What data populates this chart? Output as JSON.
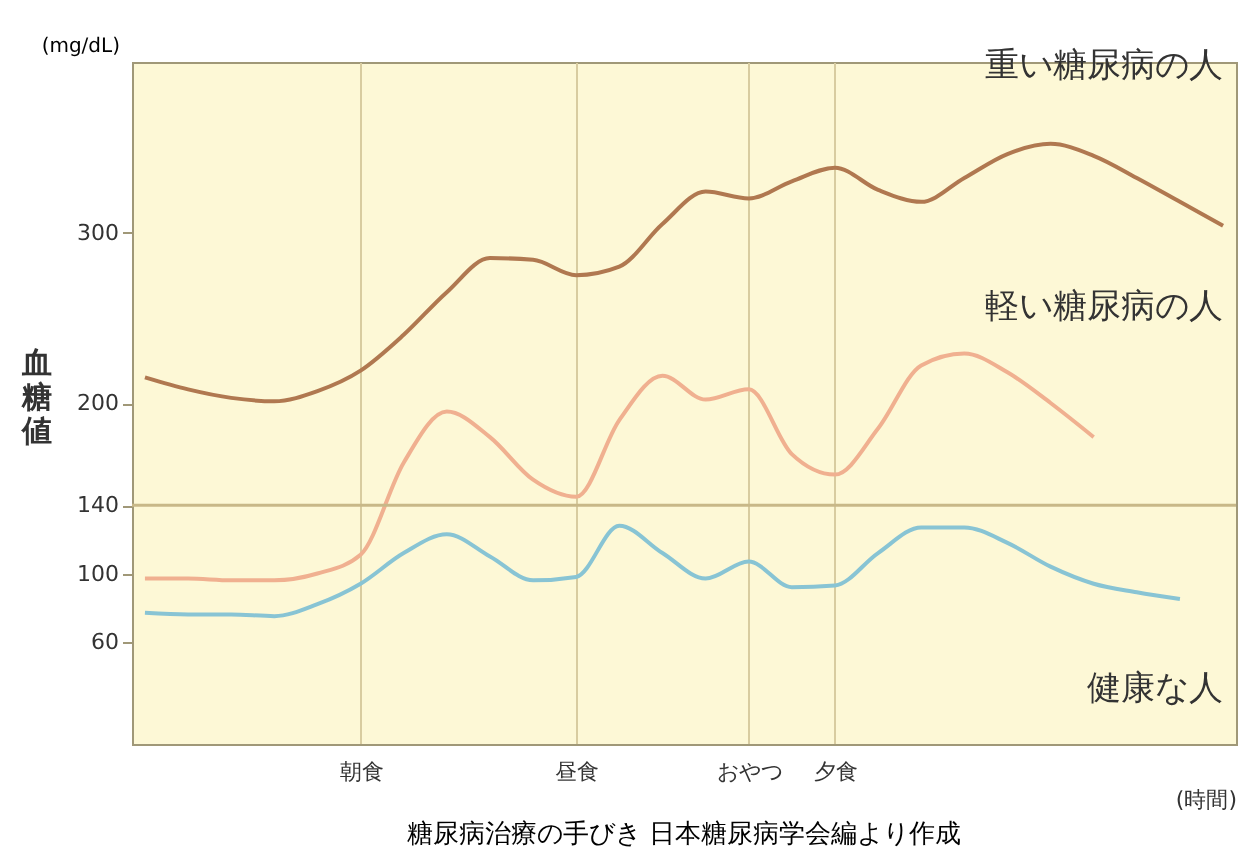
{
  "chart_data": {
    "type": "line",
    "xlabel": "(時間)",
    "ylabel": "血糖値",
    "annotations": [
      "(mg/dL)",
      "糖尿病治療の手びき 日本糖尿病学会編より作成"
    ],
    "categories": [
      null,
      null,
      null,
      null,
      null,
      "朝食",
      null,
      null,
      null,
      null,
      "昼食",
      null,
      null,
      null,
      "おやつ",
      null,
      "夕食",
      null,
      null,
      null,
      null,
      null,
      null,
      null,
      null,
      null
    ],
    "ylim": [
      0,
      400
    ],
    "yticks": [
      60,
      100,
      140,
      200,
      300
    ],
    "grid": "x",
    "legend": false,
    "marker": "none",
    "line_style": "solid",
    "ref_lines": [
      {
        "axis": "y",
        "value": 140,
        "color": "#c8b888"
      }
    ],
    "series": [
      {
        "name": "重い糖尿病の人",
        "color": "#b07850",
        "values": [
          215,
          208,
          203,
          201,
          207,
          219,
          240,
          265,
          285,
          284,
          275,
          280,
          305,
          324,
          320,
          330,
          338,
          325,
          318,
          332,
          346,
          352,
          345,
          332,
          318,
          304
        ]
      },
      {
        "name": "軽い糖尿病の人",
        "color": "#f0b090",
        "values": [
          97,
          97,
          96,
          96,
          100,
          111,
          165,
          195,
          180,
          155,
          145,
          190,
          216,
          202,
          208,
          170,
          158,
          185,
          222,
          229,
          218,
          200,
          180,
          null,
          null,
          null
        ]
      },
      {
        "name": "健康な人",
        "color": "#88c4d4",
        "values": [
          77,
          76,
          76,
          75,
          82,
          94,
          112,
          123,
          110,
          96,
          98,
          128,
          112,
          97,
          107,
          92,
          93,
          112,
          127,
          127,
          118,
          104,
          94,
          89,
          85,
          null
        ]
      }
    ]
  }
}
